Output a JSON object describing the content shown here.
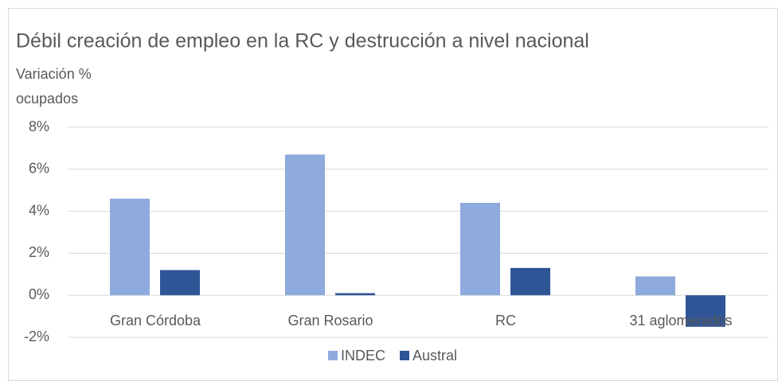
{
  "chart_data": {
    "type": "bar",
    "title": "Débil creación de empleo en la RC y destrucción a nivel nacional",
    "ylabel": [
      "Variación %",
      "ocupados"
    ],
    "categories": [
      "Gran Córdoba",
      "Gran Rosario",
      "RC",
      "31 aglomerados"
    ],
    "series": [
      {
        "name": "INDEC",
        "color": "#8faadc",
        "values": [
          4.6,
          6.7,
          4.4,
          0.9
        ]
      },
      {
        "name": "Austral",
        "color": "#2f5597",
        "values": [
          1.2,
          0.1,
          1.3,
          -1.5
        ]
      }
    ],
    "ylim": [
      -2,
      8
    ],
    "yticks": [
      {
        "value": -2,
        "label": "-2%"
      },
      {
        "value": 0,
        "label": "0%"
      },
      {
        "value": 2,
        "label": "2%"
      },
      {
        "value": 4,
        "label": "4%"
      },
      {
        "value": 6,
        "label": "6%"
      },
      {
        "value": 8,
        "label": "8%"
      }
    ],
    "grid": true,
    "legend": "bottom"
  }
}
